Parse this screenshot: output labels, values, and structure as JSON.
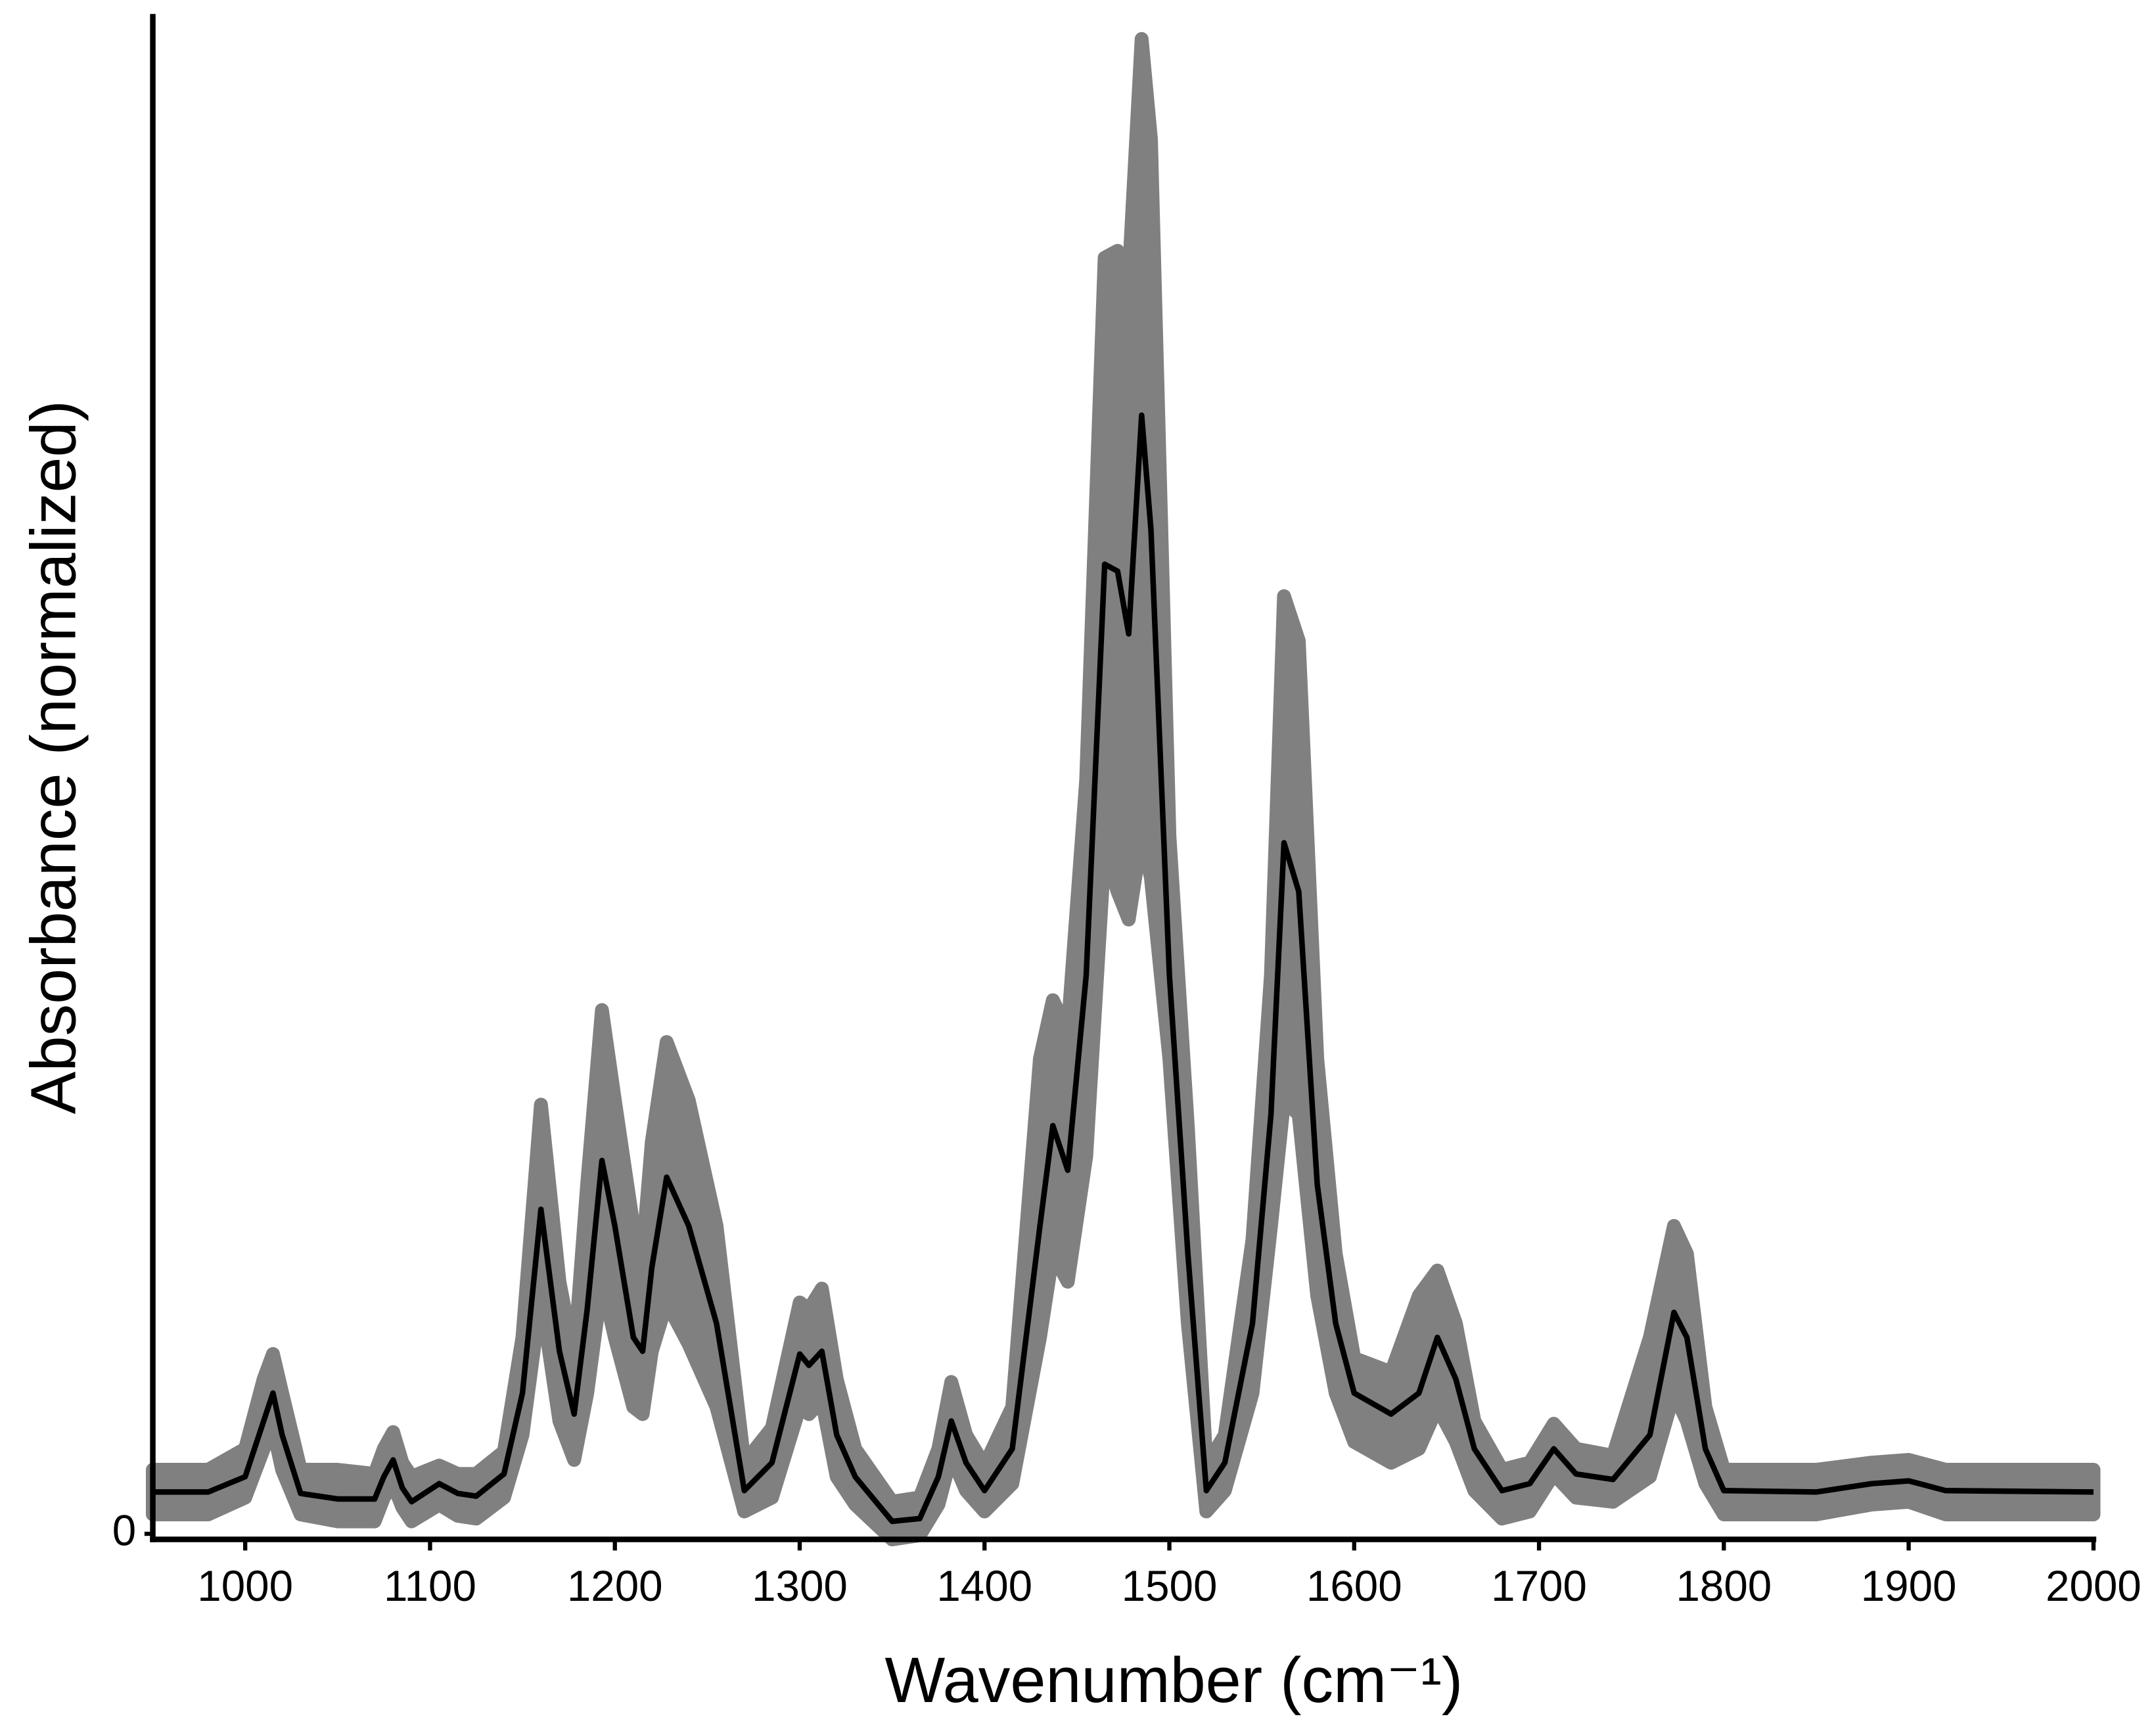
{
  "chart_data": {
    "type": "line",
    "x_label": "Wavenumber (cm⁻¹)",
    "y_label": "Absorbance (normalized)",
    "xlim": [
      950,
      2000
    ],
    "xticks": [
      1000,
      1100,
      1200,
      1300,
      1400,
      1500,
      1600,
      1700,
      1800,
      1900,
      2000
    ],
    "ylim": [
      0,
      1095
    ],
    "yticks": [
      0
    ],
    "x": [
      950,
      980,
      1000,
      1010,
      1015,
      1020,
      1030,
      1050,
      1070,
      1075,
      1080,
      1085,
      1090,
      1105,
      1115,
      1125,
      1140,
      1150,
      1160,
      1170,
      1178,
      1185,
      1193,
      1200,
      1210,
      1215,
      1220,
      1228,
      1240,
      1255,
      1270,
      1285,
      1300,
      1305,
      1312,
      1320,
      1330,
      1350,
      1365,
      1375,
      1382,
      1390,
      1400,
      1415,
      1430,
      1437,
      1445,
      1455,
      1465,
      1472,
      1478,
      1485,
      1490,
      1500,
      1510,
      1520,
      1530,
      1545,
      1555,
      1562,
      1570,
      1580,
      1590,
      1600,
      1620,
      1635,
      1645,
      1655,
      1665,
      1680,
      1695,
      1708,
      1720,
      1740,
      1760,
      1773,
      1780,
      1790,
      1800,
      1850,
      1880,
      1900,
      1920,
      2000
    ],
    "series": [
      {
        "color": "#000000",
        "values": [
          34,
          34,
          45,
          85,
          105,
          75,
          33,
          29,
          29,
          45,
          57,
          37,
          27,
          40,
          33,
          31,
          47,
          105,
          237,
          135,
          90,
          165,
          272,
          225,
          145,
          135,
          195,
          260,
          225,
          155,
          35,
          55,
          133,
          125,
          135,
          75,
          45,
          13,
          15,
          45,
          85,
          55,
          35,
          65,
          225,
          297,
          265,
          405,
          700,
          695,
          650,
          807,
          725,
          405,
          205,
          35,
          55,
          155,
          305,
          500,
          465,
          255,
          155,
          105,
          90,
          105,
          145,
          115,
          65,
          35,
          40,
          65,
          47,
          43,
          75,
          163,
          145,
          65,
          35,
          34,
          40,
          42,
          35,
          34
        ]
      }
    ],
    "band": {
      "color": "#808080",
      "upper": [
        50,
        50,
        65,
        115,
        133,
        105,
        50,
        50,
        47,
        65,
        77,
        55,
        45,
        53,
        47,
        47,
        63,
        145,
        312,
        185,
        130,
        255,
        380,
        315,
        225,
        205,
        285,
        357,
        315,
        225,
        55,
        80,
        170,
        165,
        180,
        115,
        65,
        27,
        30,
        65,
        113,
        75,
        53,
        95,
        345,
        387,
        365,
        545,
        920,
        925,
        905,
        1077,
        1005,
        505,
        295,
        53,
        75,
        215,
        405,
        677,
        645,
        345,
        205,
        130,
        120,
        175,
        193,
        155,
        85,
        50,
        55,
        83,
        65,
        60,
        145,
        225,
        205,
        95,
        50,
        50,
        55,
        57,
        50,
        50
      ],
      "lower": [
        18,
        18,
        30,
        65,
        80,
        50,
        18,
        13,
        13,
        30,
        40,
        23,
        13,
        25,
        17,
        15,
        30,
        75,
        175,
        85,
        57,
        105,
        185,
        145,
        95,
        90,
        135,
        170,
        140,
        95,
        20,
        30,
        95,
        90,
        100,
        45,
        25,
        0,
        3,
        25,
        60,
        35,
        20,
        40,
        145,
        205,
        185,
        275,
        495,
        465,
        445,
        505,
        475,
        345,
        155,
        20,
        35,
        105,
        225,
        315,
        305,
        175,
        105,
        70,
        55,
        65,
        95,
        70,
        35,
        15,
        20,
        47,
        30,
        27,
        45,
        105,
        85,
        40,
        18,
        18,
        25,
        27,
        18,
        18
      ]
    }
  }
}
